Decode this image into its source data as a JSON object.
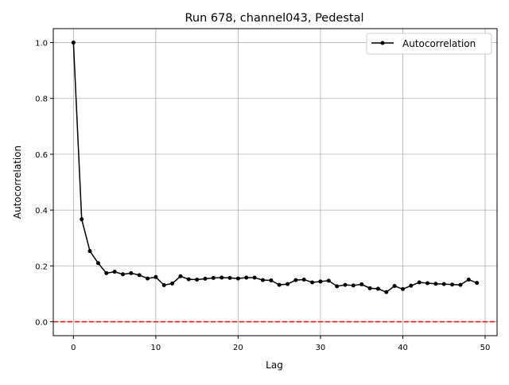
{
  "chart_data": {
    "type": "line",
    "title": "Run 678, channel043, Pedestal",
    "xlabel": "Lag",
    "ylabel": "Autocorrelation",
    "xlim": [
      -2.45,
      51.45
    ],
    "ylim": [
      -0.05,
      1.05
    ],
    "xticks": [
      0,
      10,
      20,
      30,
      40,
      50
    ],
    "yticks": [
      0.0,
      0.2,
      0.4,
      0.6,
      0.8,
      1.0
    ],
    "ytick_labels": [
      "0.0",
      "0.2",
      "0.4",
      "0.6",
      "0.8",
      "1.0"
    ],
    "grid": true,
    "legend_placement": "top-right",
    "reference_line": {
      "y": 0,
      "color": "#ff0000",
      "style": "dashed"
    },
    "series": [
      {
        "name": "Autocorrelation",
        "color": "#000000",
        "marker": "circle",
        "x": [
          0,
          1,
          2,
          3,
          4,
          5,
          6,
          7,
          8,
          9,
          10,
          11,
          12,
          13,
          14,
          15,
          16,
          17,
          18,
          19,
          20,
          21,
          22,
          23,
          24,
          25,
          26,
          27,
          28,
          29,
          30,
          31,
          32,
          33,
          34,
          35,
          36,
          37,
          38,
          39,
          40,
          41,
          42,
          43,
          44,
          45,
          46,
          47,
          48,
          49
        ],
        "y": [
          1.0,
          0.367,
          0.253,
          0.21,
          0.174,
          0.179,
          0.17,
          0.174,
          0.167,
          0.155,
          0.16,
          0.131,
          0.137,
          0.163,
          0.152,
          0.151,
          0.154,
          0.157,
          0.158,
          0.157,
          0.155,
          0.158,
          0.158,
          0.149,
          0.148,
          0.132,
          0.135,
          0.149,
          0.151,
          0.141,
          0.144,
          0.147,
          0.127,
          0.132,
          0.13,
          0.134,
          0.12,
          0.118,
          0.106,
          0.128,
          0.117,
          0.129,
          0.141,
          0.138,
          0.136,
          0.135,
          0.133,
          0.132,
          0.151,
          0.139
        ]
      }
    ]
  }
}
